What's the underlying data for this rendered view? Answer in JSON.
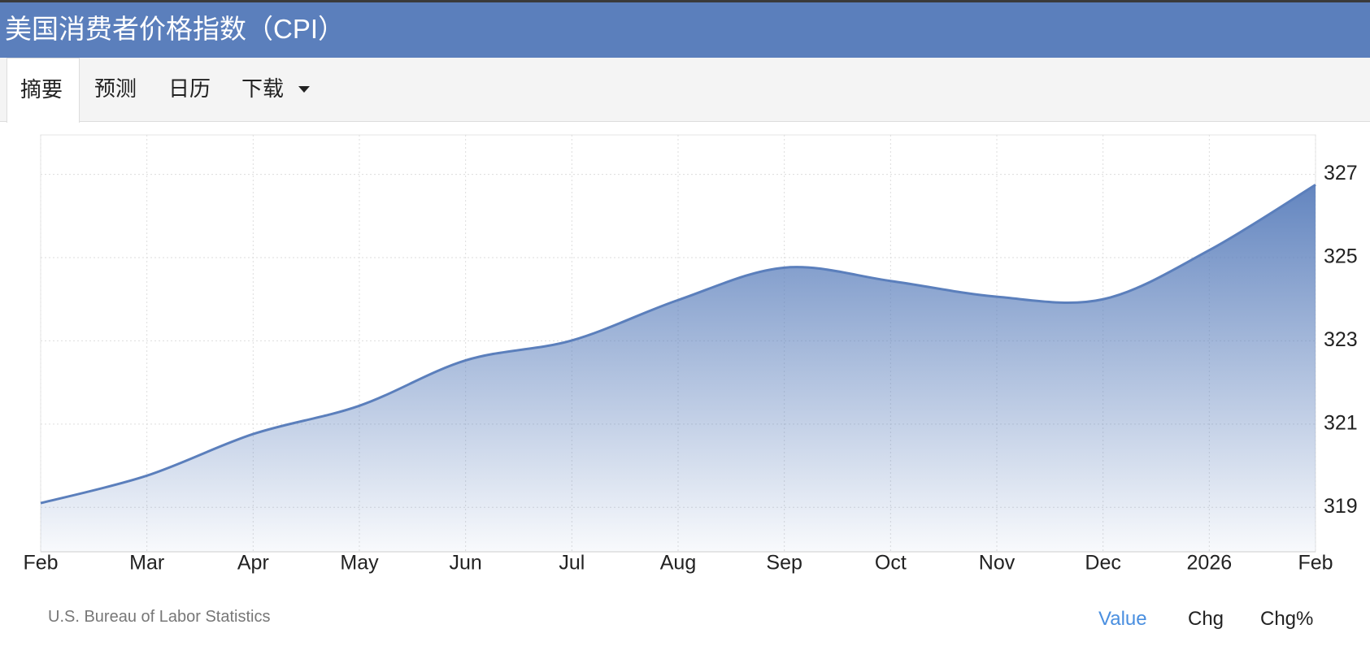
{
  "header": {
    "title": "美国消费者价格指数（CPI）"
  },
  "tabs": [
    "摘要",
    "预测",
    "日历",
    "下载"
  ],
  "chart_data": {
    "type": "area",
    "categories": [
      "Feb",
      "Mar",
      "Apr",
      "May",
      "Jun",
      "Jul",
      "Aug",
      "Sep",
      "Oct",
      "Nov",
      "Dec",
      "2026",
      "Feb"
    ],
    "values": [
      319.1,
      319.76,
      320.76,
      321.44,
      322.53,
      323.01,
      323.98,
      324.76,
      324.44,
      324.06,
      324.0,
      325.18,
      326.75
    ],
    "color": "#5b7fbc",
    "ylim": [
      317.93,
      327.95
    ],
    "yticks": [
      319,
      321,
      323,
      325,
      327
    ],
    "grid": true
  },
  "footer": {
    "source": "U.S. Bureau of Labor Statistics",
    "buttons": [
      "Value",
      "Chg",
      "Chg%"
    ]
  }
}
